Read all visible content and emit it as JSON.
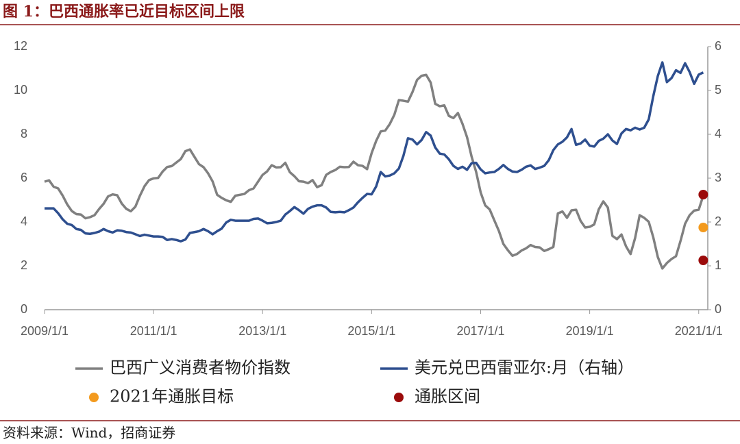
{
  "chart_data": {
    "type": "line",
    "title": "图 1：巴西通胀率已近目标区间上限",
    "source": "资料来源：Wind，招商证券",
    "x": [
      "2009/1/1",
      "2009/2/1",
      "2009/3/1",
      "2009/4/1",
      "2009/5/1",
      "2009/6/1",
      "2009/7/1",
      "2009/8/1",
      "2009/9/1",
      "2009/10/1",
      "2009/11/1",
      "2009/12/1",
      "2010/1/1",
      "2010/2/1",
      "2010/3/1",
      "2010/4/1",
      "2010/5/1",
      "2010/6/1",
      "2010/7/1",
      "2010/8/1",
      "2010/9/1",
      "2010/10/1",
      "2010/11/1",
      "2010/12/1",
      "2011/1/1",
      "2011/2/1",
      "2011/3/1",
      "2011/4/1",
      "2011/5/1",
      "2011/6/1",
      "2011/7/1",
      "2011/8/1",
      "2011/9/1",
      "2011/10/1",
      "2011/11/1",
      "2011/12/1",
      "2012/1/1",
      "2012/2/1",
      "2012/3/1",
      "2012/4/1",
      "2012/5/1",
      "2012/6/1",
      "2012/7/1",
      "2012/8/1",
      "2012/9/1",
      "2012/10/1",
      "2012/11/1",
      "2012/12/1",
      "2013/1/1",
      "2013/2/1",
      "2013/3/1",
      "2013/4/1",
      "2013/5/1",
      "2013/6/1",
      "2013/7/1",
      "2013/8/1",
      "2013/9/1",
      "2013/10/1",
      "2013/11/1",
      "2013/12/1",
      "2014/1/1",
      "2014/2/1",
      "2014/3/1",
      "2014/4/1",
      "2014/5/1",
      "2014/6/1",
      "2014/7/1",
      "2014/8/1",
      "2014/9/1",
      "2014/10/1",
      "2014/11/1",
      "2014/12/1",
      "2015/1/1",
      "2015/2/1",
      "2015/3/1",
      "2015/4/1",
      "2015/5/1",
      "2015/6/1",
      "2015/7/1",
      "2015/8/1",
      "2015/9/1",
      "2015/10/1",
      "2015/11/1",
      "2015/12/1",
      "2016/1/1",
      "2016/2/1",
      "2016/3/1",
      "2016/4/1",
      "2016/5/1",
      "2016/6/1",
      "2016/7/1",
      "2016/8/1",
      "2016/9/1",
      "2016/10/1",
      "2016/11/1",
      "2016/12/1",
      "2017/1/1",
      "2017/2/1",
      "2017/3/1",
      "2017/4/1",
      "2017/5/1",
      "2017/6/1",
      "2017/7/1",
      "2017/8/1",
      "2017/9/1",
      "2017/10/1",
      "2017/11/1",
      "2017/12/1",
      "2018/1/1",
      "2018/2/1",
      "2018/3/1",
      "2018/4/1",
      "2018/5/1",
      "2018/6/1",
      "2018/7/1",
      "2018/8/1",
      "2018/9/1",
      "2018/10/1",
      "2018/11/1",
      "2018/12/1",
      "2019/1/1",
      "2019/2/1",
      "2019/3/1",
      "2019/4/1",
      "2019/5/1",
      "2019/6/1",
      "2019/7/1",
      "2019/8/1",
      "2019/9/1",
      "2019/10/1",
      "2019/11/1",
      "2019/12/1",
      "2020/1/1",
      "2020/2/1",
      "2020/3/1",
      "2020/4/1",
      "2020/5/1",
      "2020/6/1",
      "2020/7/1",
      "2020/8/1",
      "2020/9/1",
      "2020/10/1",
      "2020/11/1",
      "2020/12/1",
      "2021/1/1",
      "2021/2/1"
    ],
    "series": [
      {
        "name": "巴西广义消费者物价指数",
        "type": "line",
        "color": "#808080",
        "values": [
          5.84,
          5.9,
          5.61,
          5.53,
          5.2,
          4.8,
          4.5,
          4.36,
          4.34,
          4.17,
          4.22,
          4.31,
          4.59,
          4.83,
          5.17,
          5.26,
          5.22,
          4.84,
          4.6,
          4.49,
          4.7,
          5.2,
          5.63,
          5.91,
          5.99,
          6.01,
          6.3,
          6.51,
          6.55,
          6.71,
          6.87,
          7.23,
          7.31,
          6.97,
          6.64,
          6.5,
          6.22,
          5.85,
          5.24,
          5.1,
          4.99,
          4.92,
          5.2,
          5.24,
          5.28,
          5.45,
          5.53,
          5.84,
          6.15,
          6.31,
          6.59,
          6.49,
          6.5,
          6.7,
          6.27,
          6.09,
          5.86,
          5.84,
          5.77,
          5.91,
          5.59,
          5.68,
          6.15,
          6.28,
          6.37,
          6.52,
          6.5,
          6.51,
          6.75,
          6.59,
          6.56,
          6.41,
          7.14,
          7.7,
          8.13,
          8.17,
          8.47,
          8.89,
          9.56,
          9.53,
          9.49,
          9.93,
          10.48,
          10.67,
          10.71,
          10.36,
          9.39,
          9.28,
          9.32,
          8.84,
          8.74,
          8.97,
          8.48,
          7.87,
          6.99,
          6.29,
          5.35,
          4.76,
          4.57,
          4.08,
          3.6,
          3.0,
          2.71,
          2.46,
          2.54,
          2.7,
          2.8,
          2.95,
          2.86,
          2.84,
          2.68,
          2.76,
          2.86,
          4.39,
          4.48,
          4.19,
          4.53,
          4.56,
          4.05,
          3.75,
          3.78,
          3.89,
          4.58,
          4.94,
          4.66,
          3.37,
          3.22,
          3.43,
          2.89,
          2.54,
          3.27,
          4.31,
          4.19,
          4.01,
          3.3,
          2.4,
          1.88,
          2.13,
          2.31,
          2.44,
          3.14,
          3.92,
          4.31,
          4.52,
          4.56,
          5.2
        ]
      },
      {
        "name": "美元兑巴西雷亚尔:月（右轴）",
        "type": "line",
        "axis": "y2",
        "color": "#2E4F8F",
        "values": [
          2.31,
          2.31,
          2.31,
          2.2,
          2.06,
          1.96,
          1.93,
          1.84,
          1.82,
          1.74,
          1.73,
          1.75,
          1.78,
          1.84,
          1.79,
          1.76,
          1.81,
          1.8,
          1.77,
          1.76,
          1.72,
          1.68,
          1.71,
          1.69,
          1.67,
          1.67,
          1.66,
          1.59,
          1.61,
          1.59,
          1.56,
          1.6,
          1.75,
          1.77,
          1.79,
          1.84,
          1.79,
          1.72,
          1.79,
          1.85,
          1.99,
          2.05,
          2.03,
          2.03,
          2.03,
          2.03,
          2.07,
          2.08,
          2.03,
          1.97,
          1.98,
          2.0,
          2.03,
          2.17,
          2.25,
          2.34,
          2.27,
          2.19,
          2.3,
          2.35,
          2.38,
          2.38,
          2.33,
          2.23,
          2.22,
          2.23,
          2.22,
          2.27,
          2.33,
          2.45,
          2.55,
          2.64,
          2.63,
          2.81,
          3.14,
          3.04,
          3.06,
          3.11,
          3.22,
          3.51,
          3.91,
          3.88,
          3.77,
          3.87,
          4.05,
          3.97,
          3.7,
          3.56,
          3.54,
          3.43,
          3.28,
          3.21,
          3.26,
          3.19,
          3.34,
          3.35,
          3.2,
          3.11,
          3.13,
          3.14,
          3.21,
          3.3,
          3.21,
          3.15,
          3.14,
          3.19,
          3.26,
          3.29,
          3.21,
          3.24,
          3.28,
          3.41,
          3.64,
          3.77,
          3.83,
          3.93,
          4.12,
          3.76,
          3.79,
          3.88,
          3.74,
          3.72,
          3.85,
          3.9,
          4.0,
          3.86,
          3.78,
          4.02,
          4.12,
          4.09,
          4.15,
          4.11,
          4.15,
          4.34,
          4.87,
          5.33,
          5.64,
          5.19,
          5.28,
          5.46,
          5.4,
          5.62,
          5.42,
          5.15,
          5.36,
          5.41
        ]
      },
      {
        "name": "2021年通胀目标",
        "type": "scatter",
        "color": "#F39A1E",
        "x": [
          "2021/2/1"
        ],
        "values": [
          3.75
        ]
      },
      {
        "name": "通胀区间",
        "type": "scatter",
        "color": "#9B0B0B",
        "x": [
          "2021/2/1",
          "2021/2/1"
        ],
        "values": [
          5.25,
          2.25
        ]
      }
    ],
    "xlim": [
      "2009/1/1",
      "2021/3/1"
    ],
    "xticks": [
      "2009/1/1",
      "2011/1/1",
      "2013/1/1",
      "2015/1/1",
      "2017/1/1",
      "2019/1/1",
      "2021/1/1"
    ],
    "ylim": [
      0,
      12
    ],
    "yticks": [
      0,
      2,
      4,
      6,
      8,
      10,
      12
    ],
    "y2lim": [
      0,
      6
    ],
    "y2ticks": [
      0,
      1,
      2,
      3,
      4,
      5,
      6
    ]
  }
}
